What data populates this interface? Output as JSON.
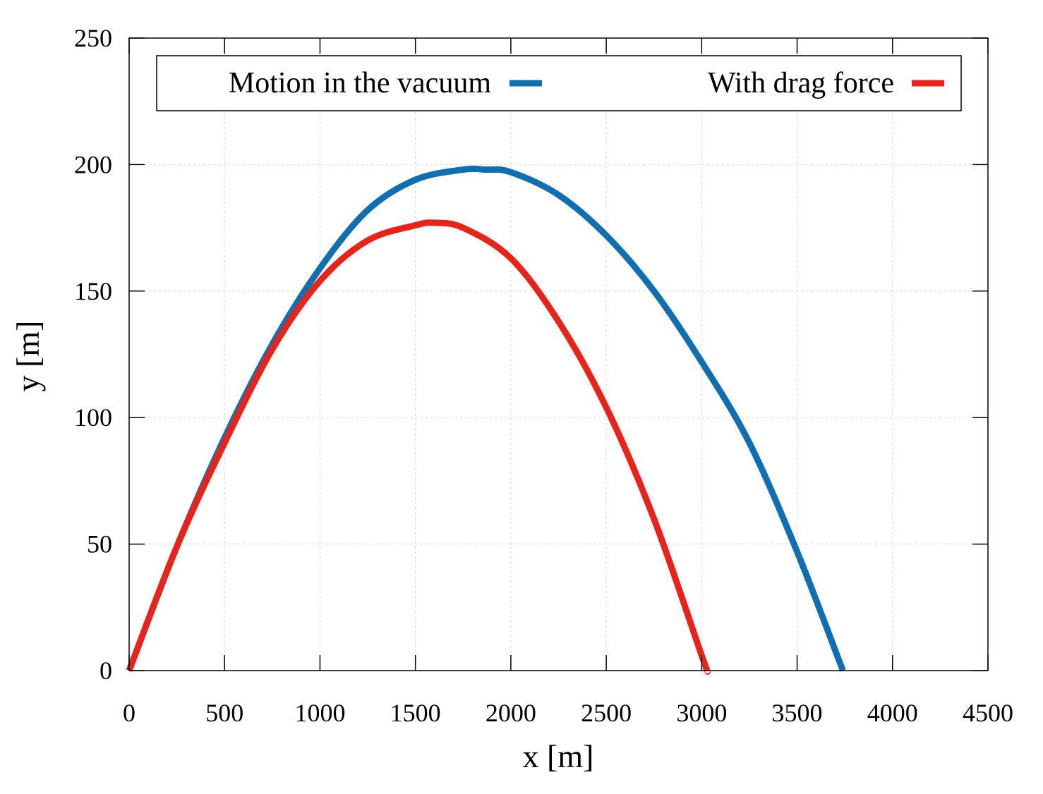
{
  "chart_data": {
    "type": "line",
    "title": "",
    "xlabel": "x [m]",
    "ylabel": "y [m]",
    "xlim": [
      0,
      4500
    ],
    "ylim": [
      0,
      250
    ],
    "xticks": [
      "0",
      "500",
      "1000",
      "1500",
      "2000",
      "2500",
      "3000",
      "3500",
      "4000",
      "4500"
    ],
    "yticks": [
      "0",
      "50",
      "100",
      "150",
      "200",
      "250"
    ],
    "grid": true,
    "legend_position": "top",
    "series": [
      {
        "name": "Motion in the vacuum",
        "color": "#0f6fb0",
        "x": [
          0,
          250,
          500,
          750,
          1000,
          1250,
          1500,
          1750,
          1870,
          2000,
          2250,
          2500,
          2750,
          3000,
          3250,
          3500,
          3740
        ],
        "y": [
          0,
          49,
          92,
          129,
          159,
          182,
          194,
          198,
          198,
          197,
          188,
          172,
          150,
          122,
          90,
          47,
          0
        ]
      },
      {
        "name": "With drag force",
        "color": "#e8231a",
        "x": [
          0,
          250,
          500,
          750,
          1000,
          1250,
          1500,
          1600,
          1750,
          2000,
          2250,
          2500,
          2750,
          3000,
          3030
        ],
        "y": [
          0,
          49,
          90,
          127,
          154,
          170,
          176,
          177,
          175,
          163,
          138,
          104,
          60,
          6,
          0
        ]
      }
    ]
  }
}
